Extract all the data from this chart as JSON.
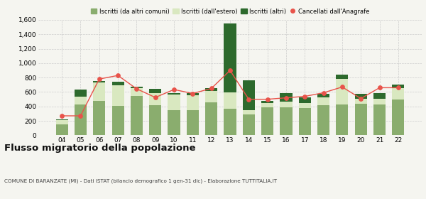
{
  "years": [
    "04",
    "05",
    "06",
    "07",
    "08",
    "09",
    "10",
    "11",
    "12",
    "13",
    "14",
    "15",
    "16",
    "17",
    "18",
    "19",
    "20",
    "21",
    "22"
  ],
  "iscritti_altri_comuni": [
    150,
    430,
    475,
    410,
    550,
    420,
    350,
    350,
    460,
    370,
    285,
    390,
    390,
    380,
    415,
    430,
    440,
    430,
    500
  ],
  "iscritti_estero": [
    60,
    110,
    255,
    285,
    100,
    165,
    215,
    205,
    150,
    225,
    65,
    60,
    75,
    70,
    110,
    350,
    70,
    80,
    155
  ],
  "iscritti_altri": [
    15,
    95,
    25,
    45,
    20,
    55,
    25,
    35,
    40,
    960,
    415,
    30,
    125,
    75,
    50,
    60,
    65,
    80,
    50
  ],
  "cancellati": [
    270,
    270,
    780,
    830,
    645,
    525,
    635,
    580,
    650,
    900,
    500,
    500,
    520,
    540,
    590,
    670,
    510,
    660,
    660
  ],
  "color_altri_comuni": "#8aad6e",
  "color_estero": "#d9e8c0",
  "color_iscritti_altri": "#2d6a2d",
  "color_cancellati": "#e8534a",
  "ylim": [
    0,
    1600
  ],
  "yticks": [
    0,
    200,
    400,
    600,
    800,
    1000,
    1200,
    1400,
    1600
  ],
  "title": "Flusso migratorio della popolazione",
  "subtitle": "COMUNE DI BARANZATE (MI) - Dati ISTAT (bilancio demografico 1 gen-31 dic) - Elaborazione TUTTITALIA.IT",
  "legend_labels": [
    "Iscritti (da altri comuni)",
    "Iscritti (dall'estero)",
    "Iscritti (altri)",
    "Cancellati dall'Anagrafe"
  ],
  "background_color": "#f5f5f0",
  "grid_color": "#cccccc"
}
